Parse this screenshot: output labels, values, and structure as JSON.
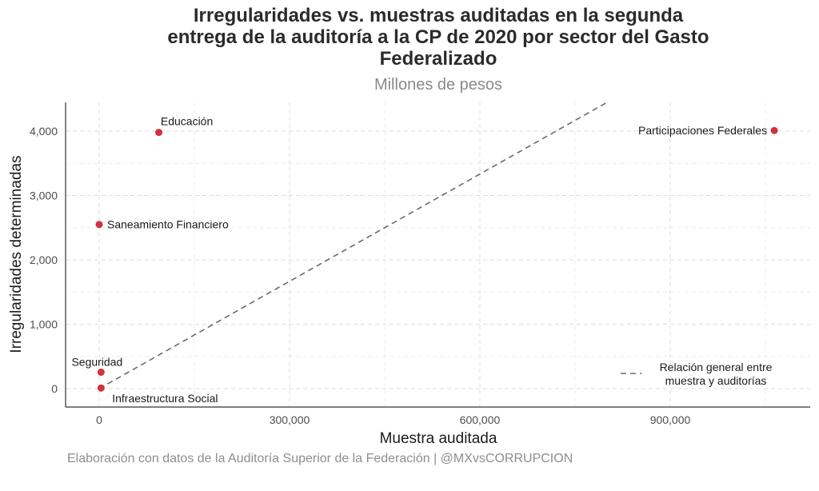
{
  "chart_data": {
    "type": "scatter",
    "title_lines": [
      "Irregularidades vs. muestras auditadas en la segunda",
      "entrega de la auditoría a la CP de 2020 por sector del Gasto",
      "Federalizado"
    ],
    "subtitle": "Millones de pesos",
    "xlabel": "Muestra auditada",
    "ylabel": "Irregularidades determinadas",
    "caption": "Elaboración con datos de la Auditoría Superior de la Federación | @MXvsCORRUPCION",
    "x_ticks": [
      0,
      300000,
      600000,
      900000
    ],
    "x_tick_labels": [
      "0",
      "300,000",
      "600,000",
      "900,000"
    ],
    "y_ticks": [
      0,
      1000,
      2000,
      3000,
      4000
    ],
    "y_tick_labels": [
      "0",
      "1,000",
      "2,000",
      "3,000",
      "4,000"
    ],
    "xlim": [
      -25000,
      1110000
    ],
    "ylim": [
      -290000,
      4450
    ],
    "points": [
      {
        "label": "Educación",
        "x": 94000,
        "y": 3980
      },
      {
        "label": "Participaciones Federales",
        "x": 1064000,
        "y": 4010
      },
      {
        "label": "Saneamiento Financiero",
        "x": 0,
        "y": 2550
      },
      {
        "label": "Seguridad",
        "x": 3000,
        "y": 255
      },
      {
        "label": "Infraestructura Social",
        "x": 3000,
        "y": 10
      }
    ],
    "reference_line": {
      "label_lines": [
        "Relación general entre",
        "muestra y auditorías"
      ],
      "slope": 0.005556,
      "intercept": 0
    },
    "point_color": "#d0323b",
    "line_color": "#6b6b6b",
    "grid": true
  }
}
